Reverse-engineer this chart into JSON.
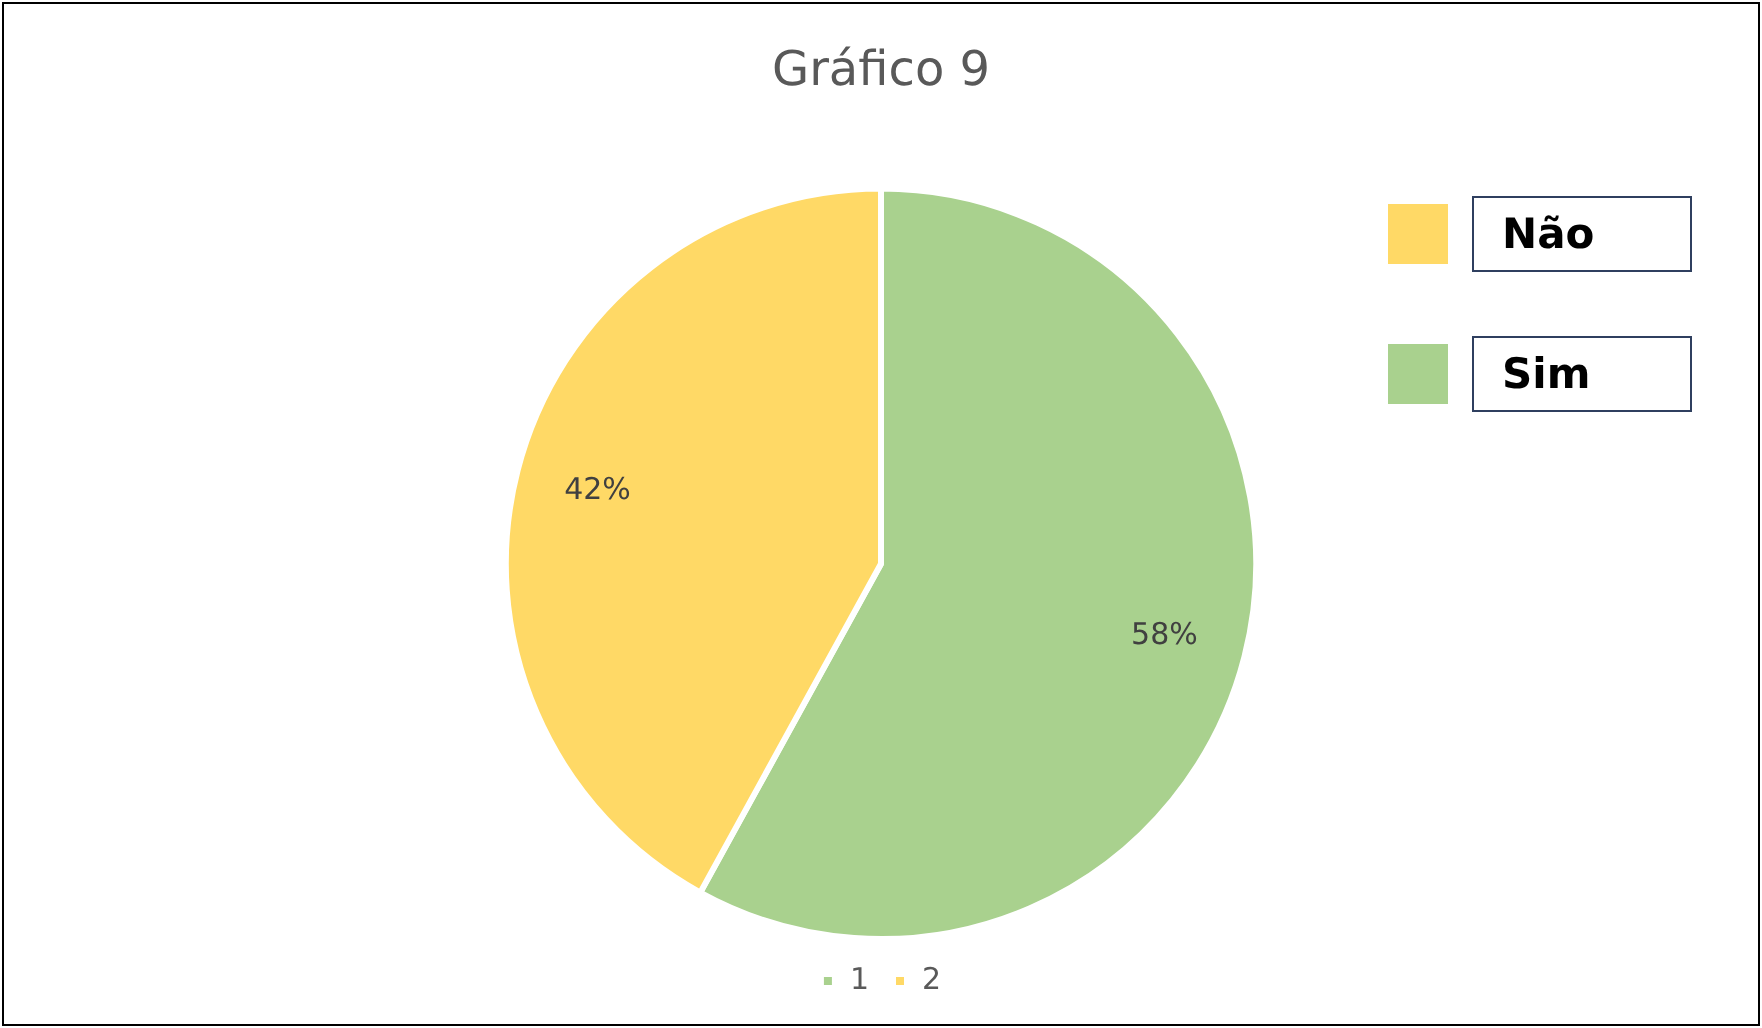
{
  "chart_data": {
    "type": "pie",
    "title": "Gráfico 9",
    "categories": [
      "1",
      "2"
    ],
    "values": [
      58,
      42
    ],
    "value_labels": [
      "58%",
      "42%"
    ],
    "colors": [
      "#a9d18e",
      "#ffd966"
    ],
    "legend": "bottom",
    "annotations": [
      "Sim",
      "Não"
    ]
  }
}
